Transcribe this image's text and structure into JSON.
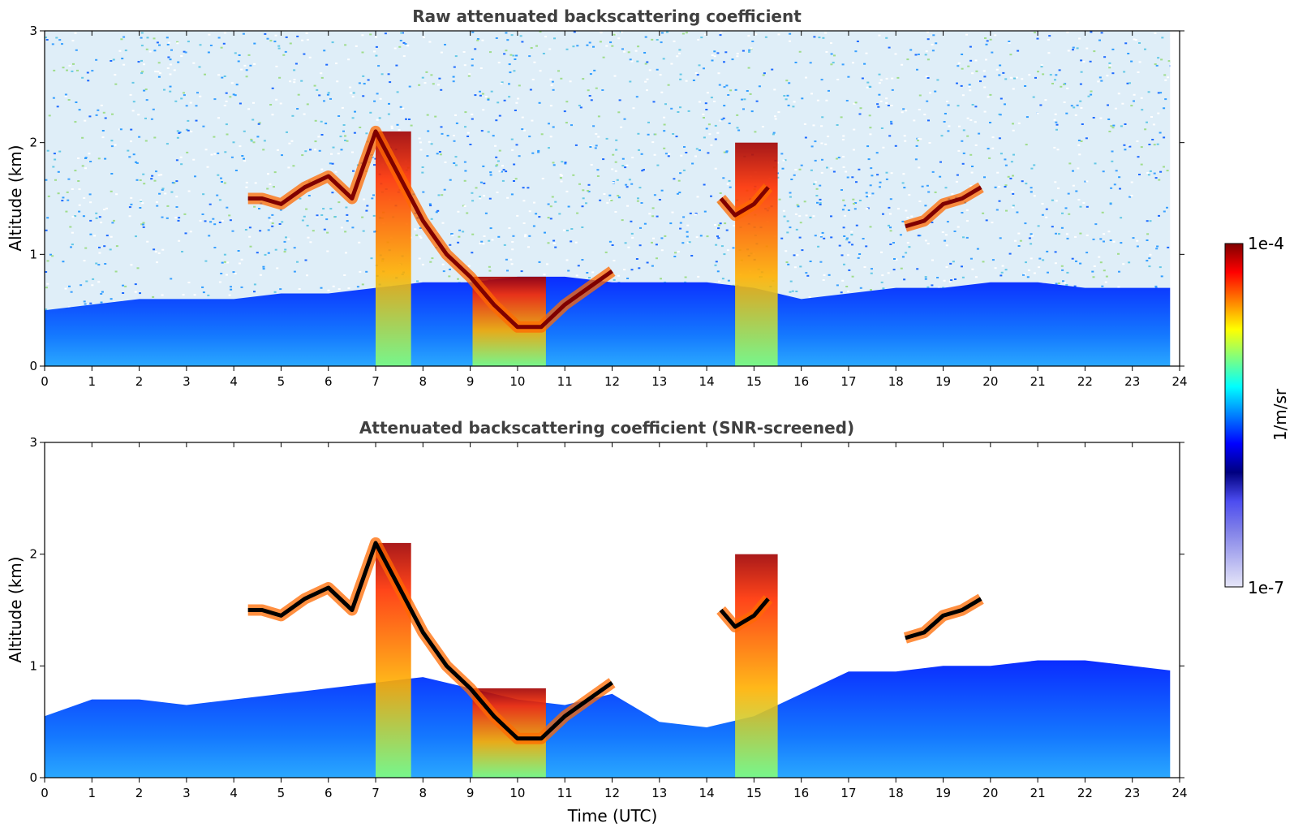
{
  "chart_data": [
    {
      "type": "heatmap",
      "title": "Raw attenuated backscattering coefficient",
      "xlabel": "",
      "ylabel": "Altitude (km)",
      "xlim": [
        0,
        24
      ],
      "ylim": [
        0,
        3
      ],
      "x_ticks": [
        "0",
        "1",
        "2",
        "3",
        "4",
        "5",
        "6",
        "7",
        "8",
        "9",
        "10",
        "11",
        "12",
        "13",
        "14",
        "15",
        "16",
        "17",
        "18",
        "19",
        "20",
        "21",
        "22",
        "23",
        "24"
      ],
      "y_ticks": [
        "0",
        "1",
        "2",
        "3"
      ],
      "screened": false,
      "background_top_altitude_km": [
        0.5,
        0.55,
        0.6,
        0.6,
        0.6,
        0.65,
        0.65,
        0.7,
        0.75,
        0.75,
        0.8,
        0.8,
        0.75,
        0.75,
        0.75,
        0.7,
        0.6,
        0.65,
        0.7,
        0.7,
        0.75,
        0.75,
        0.7,
        0.7,
        0.7
      ],
      "layers": [
        {
          "name": "boundary",
          "times": [
            4.3,
            4.6,
            5.0,
            5.5,
            6.0,
            6.5,
            7.0,
            7.5,
            8.0,
            8.5,
            9.0,
            9.5,
            10.0,
            10.5,
            11.0,
            11.5,
            12.0
          ],
          "altitudes": [
            1.5,
            1.5,
            1.45,
            1.6,
            1.7,
            1.5,
            2.1,
            1.7,
            1.3,
            1.0,
            0.8,
            0.55,
            0.35,
            0.35,
            0.55,
            0.7,
            0.85
          ]
        },
        {
          "name": "cloud_afternoon",
          "times": [
            14.3,
            14.6,
            15.0,
            15.3
          ],
          "altitudes": [
            1.5,
            1.35,
            1.45,
            1.6
          ]
        },
        {
          "name": "cloud_evening",
          "times": [
            18.2,
            18.6,
            19.0,
            19.4,
            19.8
          ],
          "altitudes": [
            1.25,
            1.3,
            1.45,
            1.5,
            1.6
          ]
        }
      ],
      "precipitation_columns": [
        {
          "start": 7.0,
          "end": 7.75,
          "top": 2.1
        },
        {
          "start": 9.05,
          "end": 10.6,
          "top": 0.8
        },
        {
          "start": 14.6,
          "end": 15.5,
          "top": 2.0
        }
      ]
    },
    {
      "type": "heatmap",
      "title": "Attenuated backscattering coefficient (SNR-screened)",
      "xlabel": "Time (UTC)",
      "ylabel": "Altitude (km)",
      "xlim": [
        0,
        24
      ],
      "ylim": [
        0,
        3
      ],
      "x_ticks": [
        "0",
        "1",
        "2",
        "3",
        "4",
        "5",
        "6",
        "7",
        "8",
        "9",
        "10",
        "11",
        "12",
        "13",
        "14",
        "15",
        "16",
        "17",
        "18",
        "19",
        "20",
        "21",
        "22",
        "23",
        "24"
      ],
      "y_ticks": [
        "0",
        "1",
        "2",
        "3"
      ],
      "screened": true,
      "background_top_altitude_km": [
        0.55,
        0.7,
        0.7,
        0.65,
        0.7,
        0.75,
        0.8,
        0.85,
        0.9,
        0.8,
        0.7,
        0.65,
        0.75,
        0.5,
        0.45,
        0.55,
        0.75,
        0.95,
        0.95,
        1.0,
        1.0,
        1.05,
        1.05,
        1.0,
        0.95
      ],
      "layers": [
        {
          "name": "boundary",
          "times": [
            4.3,
            4.6,
            5.0,
            5.5,
            6.0,
            6.5,
            7.0,
            7.5,
            8.0,
            8.5,
            9.0,
            9.5,
            10.0,
            10.5,
            11.0,
            11.5,
            12.0
          ],
          "altitudes": [
            1.5,
            1.5,
            1.45,
            1.6,
            1.7,
            1.5,
            2.1,
            1.7,
            1.3,
            1.0,
            0.8,
            0.55,
            0.35,
            0.35,
            0.55,
            0.7,
            0.85
          ]
        },
        {
          "name": "cloud_afternoon",
          "times": [
            14.3,
            14.6,
            15.0,
            15.3
          ],
          "altitudes": [
            1.5,
            1.35,
            1.45,
            1.6
          ]
        },
        {
          "name": "cloud_evening",
          "times": [
            18.2,
            18.6,
            19.0,
            19.4,
            19.8
          ],
          "altitudes": [
            1.25,
            1.3,
            1.45,
            1.5,
            1.6
          ]
        }
      ],
      "precipitation_columns": [
        {
          "start": 7.0,
          "end": 7.75,
          "top": 2.1
        },
        {
          "start": 9.05,
          "end": 10.6,
          "top": 0.8
        },
        {
          "start": 14.6,
          "end": 15.5,
          "top": 2.0
        }
      ]
    }
  ],
  "colorbar": {
    "label": "1/m/sr",
    "max_label": "1e-4",
    "min_label": "1e-7",
    "colormap": "jet",
    "stops": [
      "#00007f",
      "#0000ff",
      "#007fff",
      "#00ffff",
      "#7fff7f",
      "#ffff00",
      "#ff7f00",
      "#ff0000",
      "#7f0000"
    ],
    "low_stops": [
      "#e6e6f8",
      "#b3b3f0",
      "#7f7fe8",
      "#4c4cf0",
      "#0000ff"
    ]
  }
}
